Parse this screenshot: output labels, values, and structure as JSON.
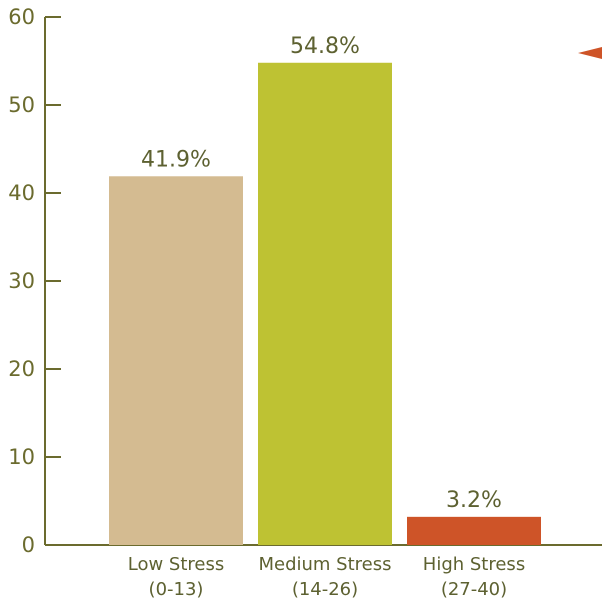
{
  "colors": {
    "axis": "#6b6b2e",
    "low": "#d4bb91",
    "medium": "#bec233",
    "high": "#ce5428",
    "marker": "#ce5428"
  },
  "chart_data": {
    "type": "bar",
    "categories": [
      [
        "Low Stress",
        "(0-13)"
      ],
      [
        "Medium Stress",
        "(14-26)"
      ],
      [
        "High Stress",
        "(27-40)"
      ]
    ],
    "values": [
      41.9,
      54.8,
      3.2
    ],
    "data_labels": [
      "41.9%",
      "54.8%",
      "3.2%"
    ],
    "bar_colors": [
      "#d4bb91",
      "#bec233",
      "#ce5428"
    ],
    "ylim": [
      0,
      60
    ],
    "yticks": [
      0,
      10,
      20,
      30,
      40,
      50,
      60
    ],
    "grid": false,
    "legend": "none",
    "marker_icon": "left-pointing-triangle-icon"
  }
}
